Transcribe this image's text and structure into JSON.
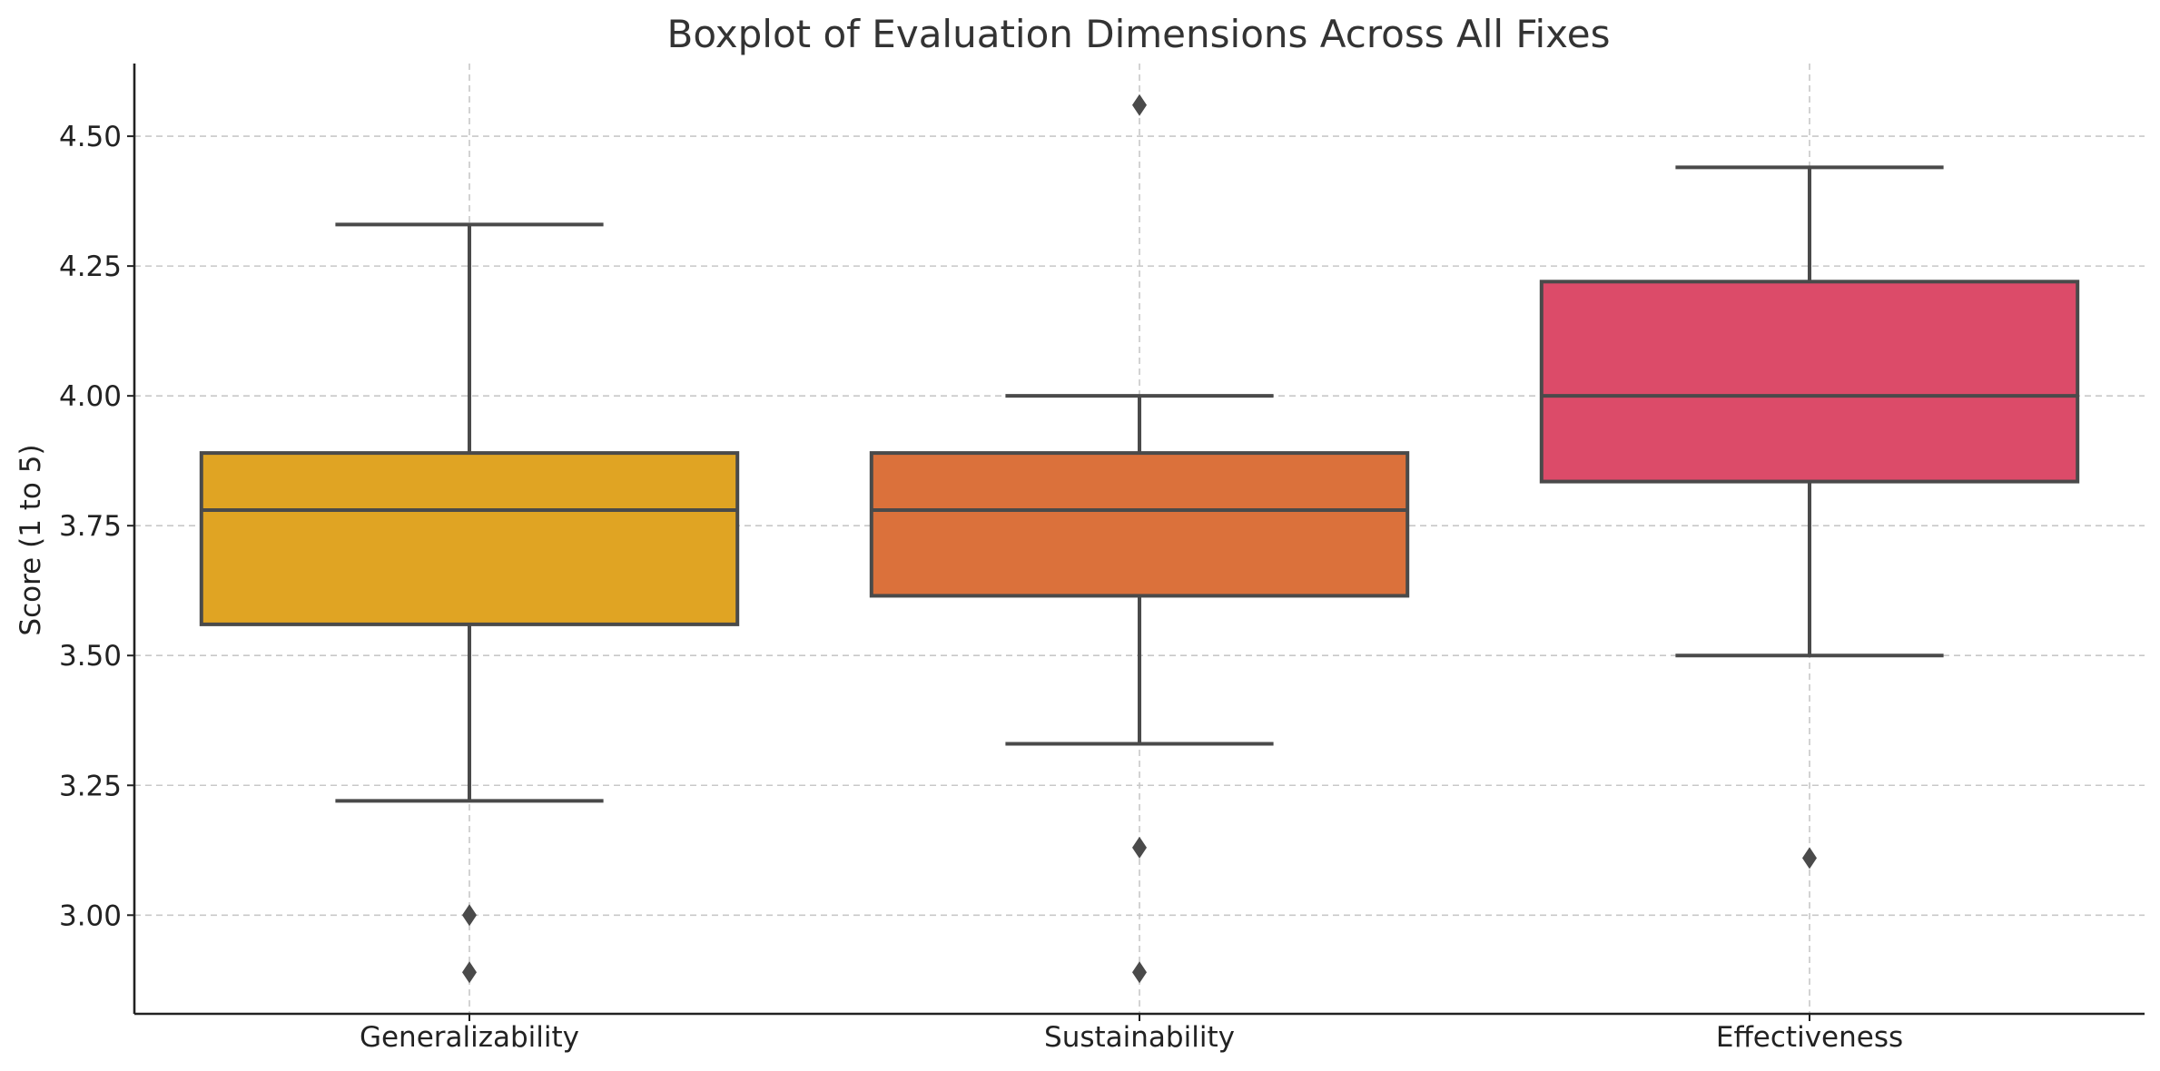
{
  "chart_data": {
    "type": "boxplot",
    "title": "Boxplot of Evaluation Dimensions Across All Fixes",
    "xlabel": "",
    "ylabel": "Score (1 to 5)",
    "ylim": [
      2.81,
      4.64
    ],
    "yticks": [
      3.0,
      3.25,
      3.5,
      3.75,
      4.0,
      4.25,
      4.5
    ],
    "ytick_labels": [
      "3.00",
      "3.25",
      "3.50",
      "3.75",
      "4.00",
      "4.25",
      "4.50"
    ],
    "grid": true,
    "categories": [
      "Generalizability",
      "Sustainability",
      "Effectiveness"
    ],
    "series": [
      {
        "name": "Generalizability",
        "color": "#e0a423",
        "whisker_low": 3.22,
        "q1": 3.56,
        "median": 3.78,
        "q3": 3.89,
        "whisker_high": 4.33,
        "outliers": [
          3.0,
          2.89
        ]
      },
      {
        "name": "Sustainability",
        "color": "#db713b",
        "whisker_low": 3.33,
        "q1": 3.615,
        "median": 3.78,
        "q3": 3.89,
        "whisker_high": 4.0,
        "outliers": [
          4.56,
          3.13,
          2.89
        ]
      },
      {
        "name": "Effectiveness",
        "color": "#dc4b69",
        "whisker_low": 3.5,
        "q1": 3.835,
        "median": 4.0,
        "q3": 4.22,
        "whisker_high": 4.44,
        "outliers": [
          3.11
        ]
      }
    ]
  }
}
